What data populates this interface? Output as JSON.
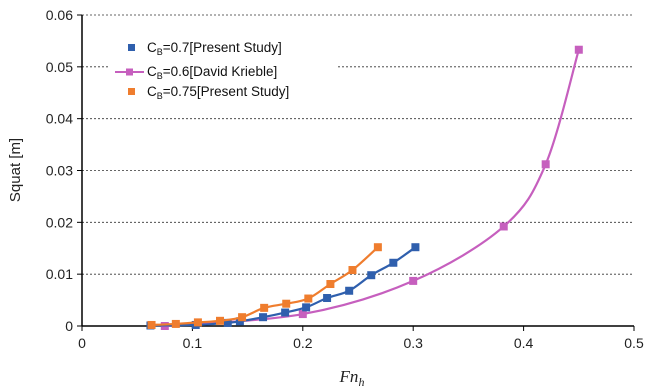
{
  "chart_data": {
    "type": "scatter",
    "xlabel": "Fn",
    "xlabel_sub": "h",
    "ylabel": "Squat [m]",
    "xlim": [
      0,
      0.5
    ],
    "ylim": [
      0,
      0.06
    ],
    "xticks": [
      "0",
      "0.1",
      "0.2",
      "0.3",
      "0.4",
      "0.5"
    ],
    "yticks": [
      "0",
      "0.01",
      "0.02",
      "0.03",
      "0.04",
      "0.05",
      "0.06"
    ],
    "grid": "horizontal dashed",
    "legend_position": "top-left",
    "series": [
      {
        "name": "C_B=0.7[Present Study]",
        "legend_pre": "C",
        "legend_sub": "B",
        "legend_post": "=0.7[Present Study]",
        "color": "#2f5fad",
        "marker": "square",
        "x": [
          0.062,
          0.103,
          0.132,
          0.143,
          0.164,
          0.184,
          0.203,
          0.222,
          0.242,
          0.262,
          0.282,
          0.302
        ],
        "y": [
          0.0001,
          0.0002,
          0.0006,
          0.0009,
          0.0017,
          0.0026,
          0.0036,
          0.0054,
          0.0068,
          0.0098,
          0.0122,
          0.0152
        ]
      },
      {
        "name": "C_B=0.6[David Krieble]",
        "legend_pre": "C",
        "legend_sub": "B",
        "legend_post": "=0.6[David Krieble]",
        "color": "#c65fbe",
        "marker": "square",
        "x": [
          0.075,
          0.2,
          0.3,
          0.382,
          0.42,
          0.45
        ],
        "y": [
          0.0,
          0.0023,
          0.0087,
          0.0192,
          0.0312,
          0.0533
        ]
      },
      {
        "name": "C_B=0.75[Present Study]",
        "legend_pre": "C",
        "legend_sub": "B",
        "legend_post": "=0.75[Present Study]",
        "color": "#ef7d2e",
        "marker": "square",
        "x": [
          0.063,
          0.085,
          0.105,
          0.125,
          0.145,
          0.165,
          0.185,
          0.205,
          0.225,
          0.245,
          0.268
        ],
        "y": [
          0.0002,
          0.0004,
          0.0007,
          0.001,
          0.0017,
          0.0035,
          0.0043,
          0.0053,
          0.0081,
          0.0108,
          0.0152
        ]
      }
    ]
  }
}
